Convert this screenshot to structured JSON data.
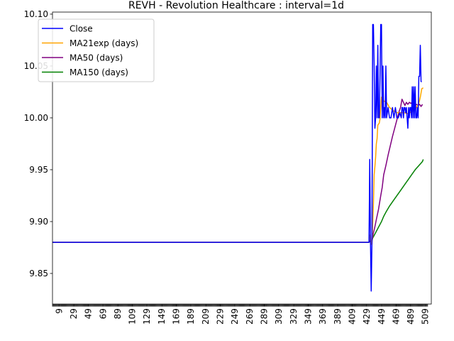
{
  "chart_data": {
    "type": "line",
    "title": "REVH - Revolution Healthcare : interval=1d",
    "xlabel": "",
    "ylabel": "",
    "xlim": [
      0,
      517
    ],
    "ylim": [
      9.8205,
      10.102
    ],
    "y_ticks": [
      "9.85",
      "9.90",
      "9.95",
      "10.00",
      "10.05",
      "10.10"
    ],
    "y_tick_values": [
      9.85,
      9.9,
      9.95,
      10.0,
      10.05,
      10.1
    ],
    "x_ticks": [
      "9",
      "29",
      "49",
      "69",
      "89",
      "109",
      "129",
      "149",
      "169",
      "189",
      "209",
      "229",
      "249",
      "269",
      "289",
      "309",
      "329",
      "349",
      "369",
      "389",
      "409",
      "429",
      "449",
      "469",
      "489",
      "509"
    ],
    "x_tick_values": [
      9,
      29,
      49,
      69,
      89,
      109,
      129,
      149,
      169,
      189,
      209,
      229,
      249,
      269,
      289,
      309,
      329,
      349,
      369,
      389,
      409,
      429,
      449,
      469,
      489,
      509
    ],
    "legend_position": "top-left",
    "grid": false,
    "series": [
      {
        "name": "Close",
        "color": "#0000ff",
        "points": [
          [
            0,
            9.88
          ],
          [
            432,
            9.88
          ],
          [
            433,
            9.96
          ],
          [
            434,
            9.88
          ],
          [
            435,
            9.833
          ],
          [
            436,
            9.88
          ],
          [
            437,
            10.09
          ],
          [
            438,
            10.09
          ],
          [
            439,
            10.05
          ],
          [
            440,
            9.99
          ],
          [
            441,
            10.0
          ],
          [
            442,
            10.05
          ],
          [
            443,
            10.0
          ],
          [
            444,
            10.07
          ],
          [
            445,
            10.0
          ],
          [
            446,
            10.0
          ],
          [
            447,
            10.04
          ],
          [
            448,
            10.09
          ],
          [
            449,
            10.09
          ],
          [
            450,
            10.0
          ],
          [
            451,
            10.05
          ],
          [
            452,
            10.0
          ],
          [
            453,
            10.01
          ],
          [
            454,
            10.0
          ],
          [
            455,
            10.05
          ],
          [
            456,
            10.0
          ],
          [
            458,
            10.01
          ],
          [
            460,
            10.0
          ],
          [
            462,
            10.0
          ],
          [
            464,
            10.01
          ],
          [
            466,
            10.0
          ],
          [
            468,
            10.01
          ],
          [
            470,
            10.0
          ],
          [
            472,
            10.0
          ],
          [
            474,
            10.005
          ],
          [
            476,
            10.0
          ],
          [
            477,
            10.01
          ],
          [
            478,
            10.01
          ],
          [
            479,
            10.0
          ],
          [
            480,
            10.01
          ],
          [
            481,
            10.01
          ],
          [
            482,
            10.005
          ],
          [
            483,
            10.01
          ],
          [
            484,
            10.0
          ],
          [
            485,
            9.99
          ],
          [
            486,
            10.01
          ],
          [
            487,
            10.0
          ],
          [
            488,
            10.01
          ],
          [
            489,
            10.01
          ],
          [
            490,
            10.0
          ],
          [
            491,
            10.03
          ],
          [
            492,
            10.0
          ],
          [
            493,
            10.03
          ],
          [
            494,
            10.0
          ],
          [
            495,
            10.03
          ],
          [
            496,
            10.0
          ],
          [
            497,
            10.0
          ],
          [
            498,
            10.01
          ],
          [
            499,
            10.0
          ],
          [
            500,
            10.04
          ],
          [
            501,
            10.04
          ],
          [
            502,
            10.07
          ],
          [
            503,
            10.035
          ],
          [
            504,
            10.035
          ]
        ]
      },
      {
        "name": "MA21exp (days)",
        "color": "#ffa500",
        "points": [
          [
            0,
            9.88
          ],
          [
            432,
            9.88
          ],
          [
            433,
            9.887
          ],
          [
            434,
            9.887
          ],
          [
            435,
            9.878
          ],
          [
            436,
            9.878
          ],
          [
            437,
            9.897
          ],
          [
            438,
            9.917
          ],
          [
            439,
            9.945
          ],
          [
            440,
            9.953
          ],
          [
            441,
            9.962
          ],
          [
            442,
            9.975
          ],
          [
            443,
            9.98
          ],
          [
            444,
            9.993
          ],
          [
            445,
            9.994
          ],
          [
            446,
            9.995
          ],
          [
            447,
            9.999
          ],
          [
            448,
            10.011
          ],
          [
            449,
            10.02
          ],
          [
            450,
            10.018
          ],
          [
            451,
            10.02
          ],
          [
            452,
            10.016
          ],
          [
            453,
            10.016
          ],
          [
            456,
            10.015
          ],
          [
            460,
            10.01
          ],
          [
            465,
            10.007
          ],
          [
            470,
            10.005
          ],
          [
            475,
            10.005
          ],
          [
            480,
            10.005
          ],
          [
            485,
            10.004
          ],
          [
            490,
            10.006
          ],
          [
            495,
            10.008
          ],
          [
            500,
            10.014
          ],
          [
            502,
            10.02
          ],
          [
            504,
            10.028
          ],
          [
            506,
            10.029
          ]
        ]
      },
      {
        "name": "MA50 (days)",
        "color": "#800080",
        "points": [
          [
            0,
            9.88
          ],
          [
            432,
            9.88
          ],
          [
            433,
            9.882
          ],
          [
            434,
            9.882
          ],
          [
            435,
            9.881
          ],
          [
            436,
            9.881
          ],
          [
            437,
            9.885
          ],
          [
            438,
            9.889
          ],
          [
            440,
            9.895
          ],
          [
            442,
            9.902
          ],
          [
            445,
            9.912
          ],
          [
            448,
            9.925
          ],
          [
            450,
            9.933
          ],
          [
            452,
            9.945
          ],
          [
            455,
            9.954
          ],
          [
            458,
            9.964
          ],
          [
            461,
            9.973
          ],
          [
            464,
            9.982
          ],
          [
            467,
            9.99
          ],
          [
            470,
            9.998
          ],
          [
            473,
            10.006
          ],
          [
            475,
            10.01
          ],
          [
            477,
            10.018
          ],
          [
            479,
            10.015
          ],
          [
            481,
            10.012
          ],
          [
            483,
            10.015
          ],
          [
            485,
            10.013
          ],
          [
            487,
            10.015
          ],
          [
            489,
            10.014
          ],
          [
            491,
            10.015
          ],
          [
            493,
            10.013
          ],
          [
            495,
            10.012
          ],
          [
            497,
            10.013
          ],
          [
            499,
            10.012
          ],
          [
            501,
            10.013
          ],
          [
            503,
            10.011
          ],
          [
            505,
            10.013
          ]
        ]
      },
      {
        "name": "MA150 (days)",
        "color": "#008000",
        "points": [
          [
            0,
            9.88
          ],
          [
            432,
            9.88
          ],
          [
            433,
            9.881
          ],
          [
            435,
            9.879
          ],
          [
            437,
            9.884
          ],
          [
            440,
            9.888
          ],
          [
            443,
            9.892
          ],
          [
            446,
            9.896
          ],
          [
            449,
            9.9
          ],
          [
            452,
            9.905
          ],
          [
            455,
            9.909
          ],
          [
            460,
            9.915
          ],
          [
            465,
            9.92
          ],
          [
            470,
            9.925
          ],
          [
            475,
            9.93
          ],
          [
            480,
            9.935
          ],
          [
            485,
            9.94
          ],
          [
            490,
            9.945
          ],
          [
            495,
            9.95
          ],
          [
            500,
            9.954
          ],
          [
            505,
            9.958
          ],
          [
            506,
            9.96
          ]
        ]
      }
    ]
  }
}
